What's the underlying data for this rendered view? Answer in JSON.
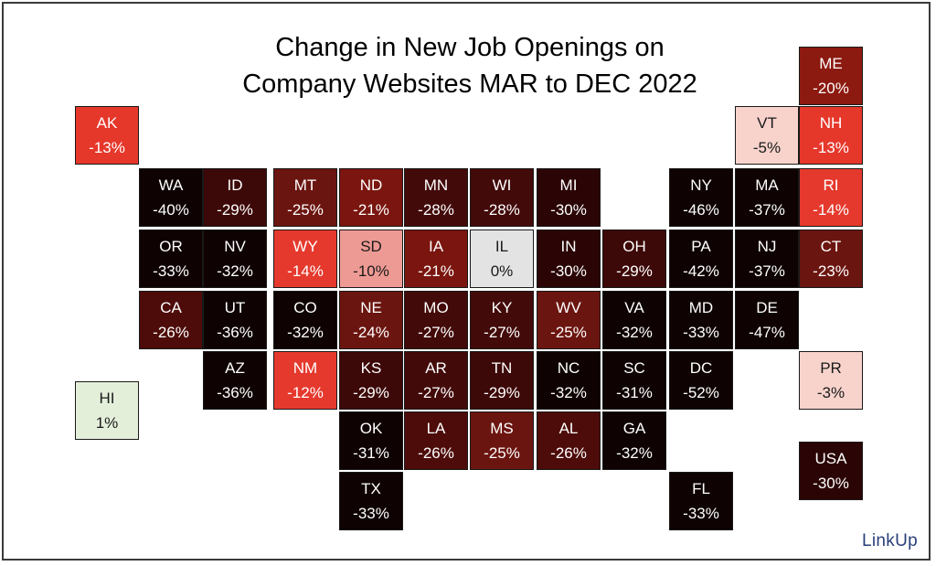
{
  "title_line1": "Change in New Job Openings on",
  "title_line2": "Company Websites MAR to DEC 2022",
  "logo": "LinkUp",
  "tiles": [
    {
      "code": "ME",
      "value": "-20%",
      "color": "#8c1a10",
      "light": false
    },
    {
      "code": "AK",
      "value": "-13%",
      "color": "#e6372b",
      "light": false
    },
    {
      "code": "VT",
      "value": "-5%",
      "color": "#f7d3cc",
      "light": true
    },
    {
      "code": "NH",
      "value": "-13%",
      "color": "#e6372b",
      "light": false
    },
    {
      "code": "WA",
      "value": "-40%",
      "color": "#0e0202",
      "light": false
    },
    {
      "code": "ID",
      "value": "-29%",
      "color": "#3d0808",
      "light": false
    },
    {
      "code": "MT",
      "value": "-25%",
      "color": "#6b1510",
      "light": false
    },
    {
      "code": "ND",
      "value": "-21%",
      "color": "#7a160f",
      "light": false
    },
    {
      "code": "MN",
      "value": "-28%",
      "color": "#420a09",
      "light": false
    },
    {
      "code": "WI",
      "value": "-28%",
      "color": "#420a09",
      "light": false
    },
    {
      "code": "MI",
      "value": "-30%",
      "color": "#2b0505",
      "light": false
    },
    {
      "code": "NY",
      "value": "-46%",
      "color": "#0e0202",
      "light": false
    },
    {
      "code": "MA",
      "value": "-37%",
      "color": "#0e0202",
      "light": false
    },
    {
      "code": "RI",
      "value": "-14%",
      "color": "#e5392d",
      "light": false
    },
    {
      "code": "OR",
      "value": "-33%",
      "color": "#0e0202",
      "light": false
    },
    {
      "code": "NV",
      "value": "-32%",
      "color": "#0e0202",
      "light": false
    },
    {
      "code": "WY",
      "value": "-14%",
      "color": "#e5392d",
      "light": false
    },
    {
      "code": "SD",
      "value": "-10%",
      "color": "#ee9a94",
      "light": true
    },
    {
      "code": "IA",
      "value": "-21%",
      "color": "#7a160f",
      "light": false
    },
    {
      "code": "IL",
      "value": "0%",
      "color": "#e3e3e3",
      "light": true
    },
    {
      "code": "IN",
      "value": "-30%",
      "color": "#2b0505",
      "light": false
    },
    {
      "code": "OH",
      "value": "-29%",
      "color": "#3d0808",
      "light": false
    },
    {
      "code": "PA",
      "value": "-42%",
      "color": "#0e0202",
      "light": false
    },
    {
      "code": "NJ",
      "value": "-37%",
      "color": "#0e0202",
      "light": false
    },
    {
      "code": "CT",
      "value": "-23%",
      "color": "#6b1510",
      "light": false
    },
    {
      "code": "CA",
      "value": "-26%",
      "color": "#4d0c0a",
      "light": false
    },
    {
      "code": "UT",
      "value": "-36%",
      "color": "#0e0202",
      "light": false
    },
    {
      "code": "CO",
      "value": "-32%",
      "color": "#0e0202",
      "light": false
    },
    {
      "code": "NE",
      "value": "-24%",
      "color": "#6b1510",
      "light": false
    },
    {
      "code": "MO",
      "value": "-27%",
      "color": "#420a09",
      "light": false
    },
    {
      "code": "KY",
      "value": "-27%",
      "color": "#420a09",
      "light": false
    },
    {
      "code": "WV",
      "value": "-25%",
      "color": "#6b1510",
      "light": false
    },
    {
      "code": "VA",
      "value": "-32%",
      "color": "#0e0202",
      "light": false
    },
    {
      "code": "MD",
      "value": "-33%",
      "color": "#0e0202",
      "light": false
    },
    {
      "code": "DE",
      "value": "-47%",
      "color": "#0e0202",
      "light": false
    },
    {
      "code": "HI",
      "value": "1%",
      "color": "#e4efda",
      "light": true
    },
    {
      "code": "AZ",
      "value": "-36%",
      "color": "#0e0202",
      "light": false
    },
    {
      "code": "NM",
      "value": "-12%",
      "color": "#e5392d",
      "light": false
    },
    {
      "code": "KS",
      "value": "-29%",
      "color": "#3d0808",
      "light": false
    },
    {
      "code": "AR",
      "value": "-27%",
      "color": "#420a09",
      "light": false
    },
    {
      "code": "TN",
      "value": "-29%",
      "color": "#3d0808",
      "light": false
    },
    {
      "code": "NC",
      "value": "-32%",
      "color": "#0e0202",
      "light": false
    },
    {
      "code": "SC",
      "value": "-31%",
      "color": "#0e0202",
      "light": false
    },
    {
      "code": "DC",
      "value": "-52%",
      "color": "#0e0202",
      "light": false
    },
    {
      "code": "PR",
      "value": "-3%",
      "color": "#f7d3cc",
      "light": true
    },
    {
      "code": "OK",
      "value": "-31%",
      "color": "#0e0202",
      "light": false
    },
    {
      "code": "LA",
      "value": "-26%",
      "color": "#4d0c0a",
      "light": false
    },
    {
      "code": "MS",
      "value": "-25%",
      "color": "#6b1510",
      "light": false
    },
    {
      "code": "AL",
      "value": "-26%",
      "color": "#4d0c0a",
      "light": false
    },
    {
      "code": "GA",
      "value": "-32%",
      "color": "#0e0202",
      "light": false
    },
    {
      "code": "USA",
      "value": "-30%",
      "color": "#2b0505",
      "light": false
    },
    {
      "code": "TX",
      "value": "-33%",
      "color": "#0e0202",
      "light": false
    },
    {
      "code": "FL",
      "value": "-33%",
      "color": "#0e0202",
      "light": false
    }
  ]
}
